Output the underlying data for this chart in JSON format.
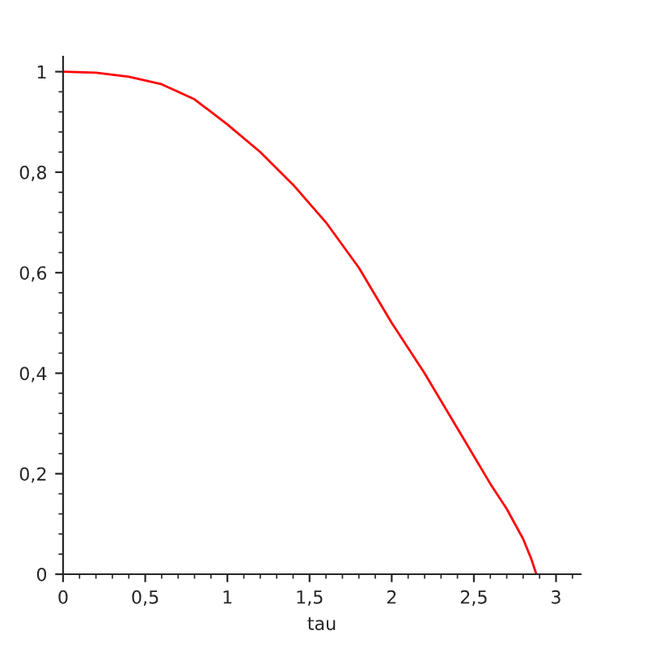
{
  "chart_data": {
    "type": "line",
    "xlabel": "tau",
    "x": [
      0,
      0.2,
      0.4,
      0.6,
      0.8,
      1.0,
      1.2,
      1.4,
      1.6,
      1.8,
      2.0,
      2.2,
      2.4,
      2.6,
      2.7,
      2.8,
      2.85,
      2.88
    ],
    "series": [
      {
        "color": "#ff0000",
        "values": [
          1,
          0.998,
          0.99,
          0.975,
          0.945,
          0.895,
          0.84,
          0.775,
          0.7,
          0.61,
          0.5,
          0.4,
          0.29,
          0.18,
          0.13,
          0.07,
          0.03,
          0
        ]
      }
    ],
    "xlim": [
      0,
      3.15
    ],
    "ylim": [
      0,
      1.03
    ],
    "xticks": [
      0,
      {
        "value": 0.5,
        "label": "0,5"
      },
      1,
      {
        "value": 1.5,
        "label": "1,5"
      },
      2,
      {
        "value": 2.5,
        "label": "2,5"
      },
      3
    ],
    "yticks": [
      0,
      {
        "value": 0.2,
        "label": "0,2"
      },
      {
        "value": 0.4,
        "label": "0,4"
      },
      {
        "value": 0.6,
        "label": "0,6"
      },
      {
        "value": 0.8,
        "label": "0,8"
      },
      1
    ],
    "grid": false,
    "legend": false,
    "marker": "none",
    "line_style": "solid"
  }
}
